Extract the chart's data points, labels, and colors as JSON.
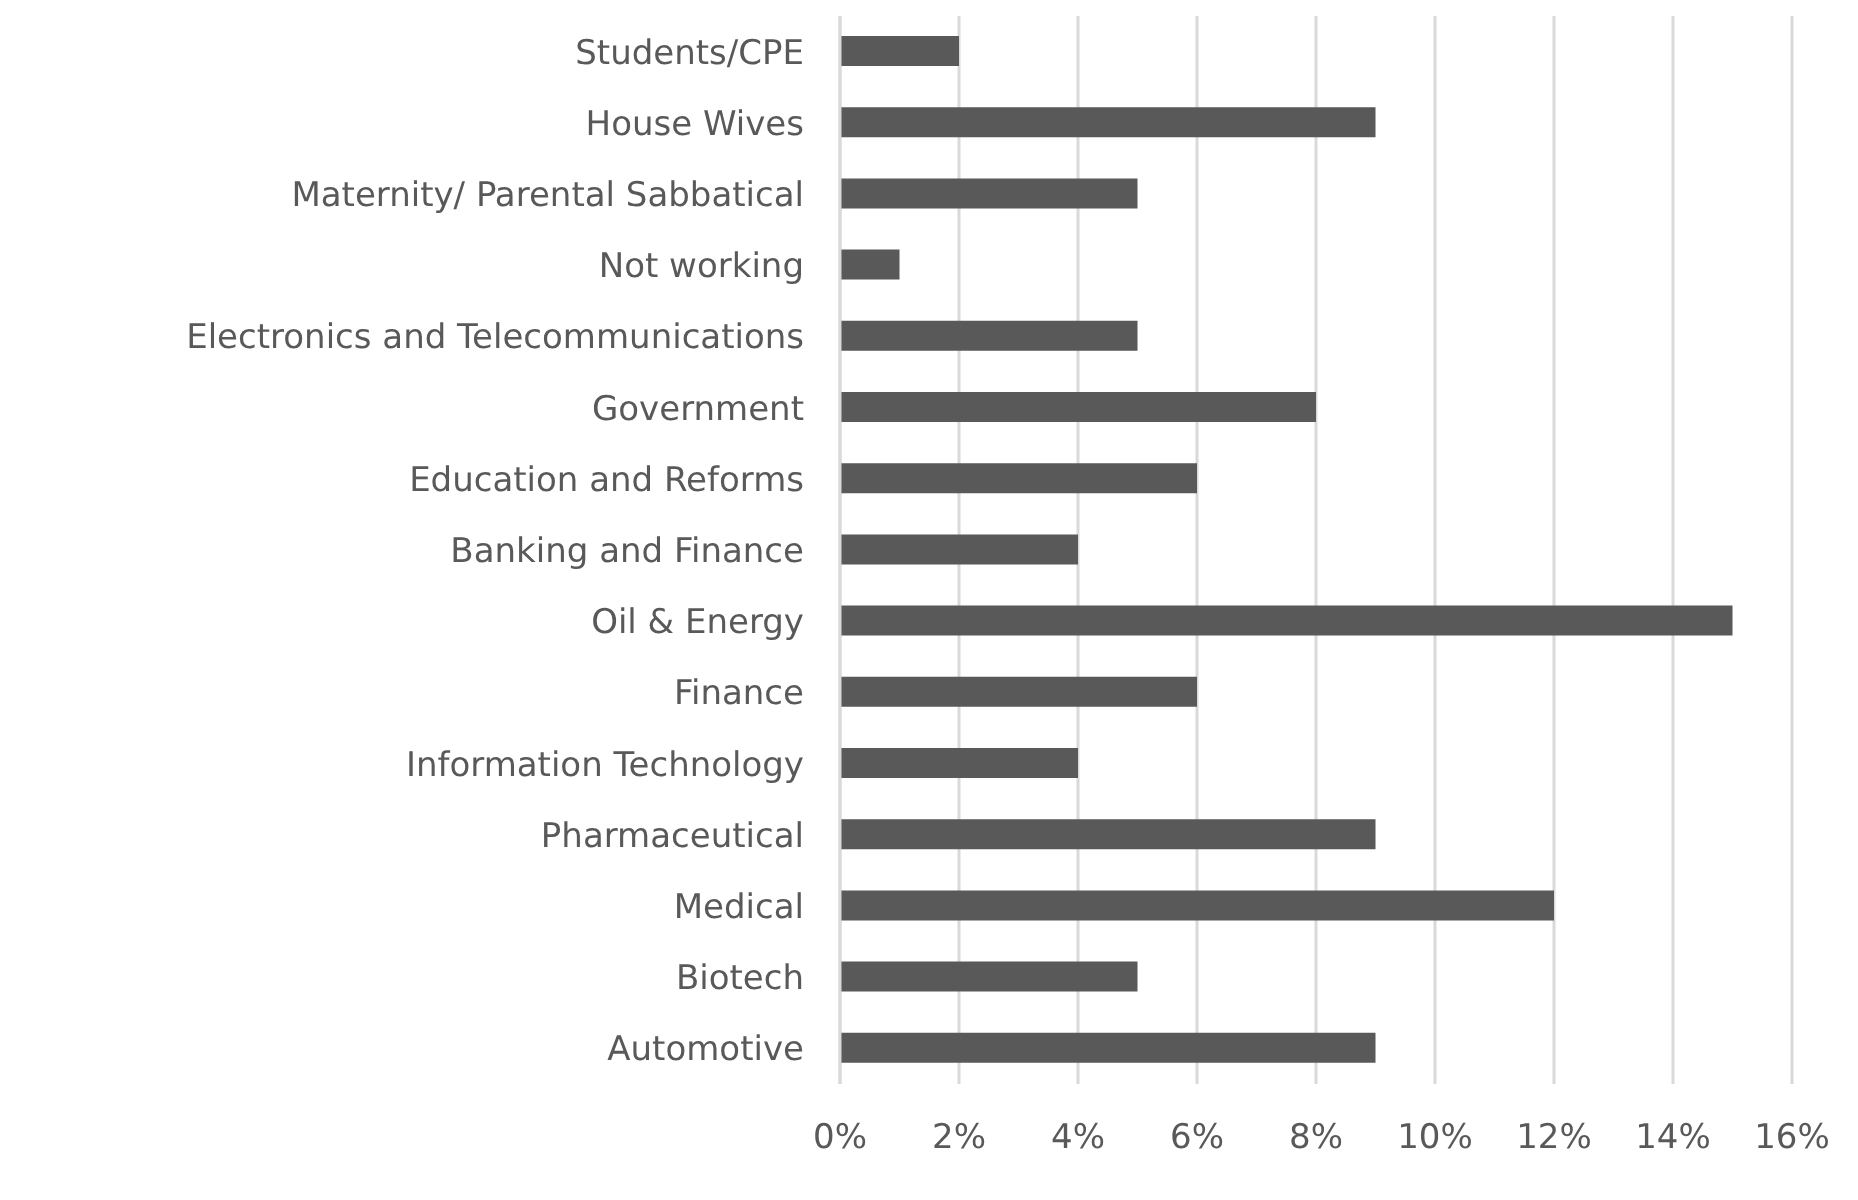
{
  "chart_data": {
    "type": "bar",
    "orientation": "horizontal",
    "categories": [
      "Students/CPE",
      "House Wives",
      "Maternity/ Parental Sabbatical",
      "Not working",
      "Electronics and Telecommunications",
      "Government",
      "Education and Reforms",
      "Banking and Finance",
      "Oil & Energy",
      "Finance",
      "Information Technology",
      "Pharmaceutical",
      "Medical",
      "Biotech",
      "Automotive"
    ],
    "values": [
      2,
      9,
      5,
      1,
      5,
      8,
      6,
      4,
      15,
      6,
      4,
      9,
      12,
      5,
      9
    ],
    "color": "#595959",
    "xlim": [
      0,
      16
    ],
    "xticks": [
      {
        "value": 0,
        "label": "0%"
      },
      {
        "value": 2,
        "label": "2%"
      },
      {
        "value": 4,
        "label": "4%"
      },
      {
        "value": 6,
        "label": "6%"
      },
      {
        "value": 8,
        "label": "8%"
      },
      {
        "value": 10,
        "label": "10%"
      },
      {
        "value": 12,
        "label": "12%"
      },
      {
        "value": 14,
        "label": "14%"
      },
      {
        "value": 16,
        "label": "16%"
      }
    ],
    "grid": "x",
    "legend": false
  }
}
